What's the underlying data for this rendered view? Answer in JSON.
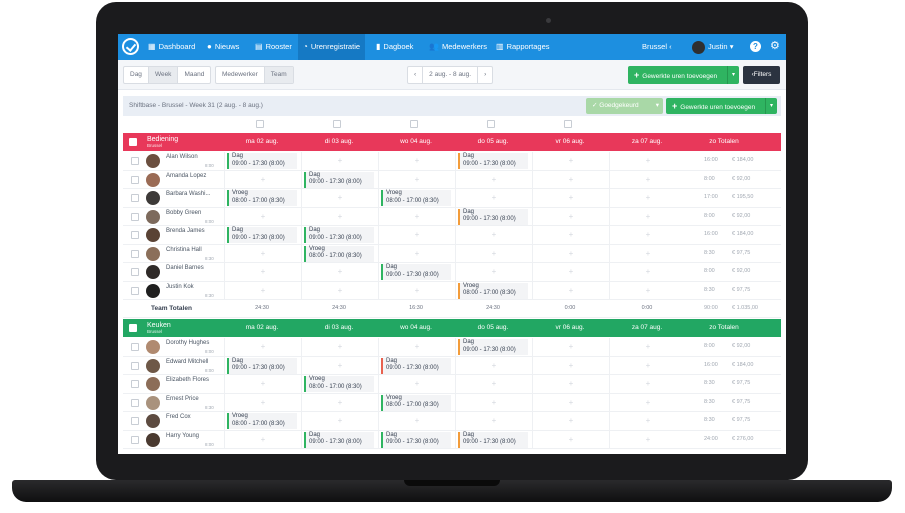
{
  "nav": {
    "items": [
      {
        "label": "Dashboard",
        "icon": "dashboard-icon"
      },
      {
        "label": "Nieuws",
        "icon": "chat-icon"
      },
      {
        "label": "Rooster",
        "icon": "calendar-icon"
      },
      {
        "label": "Urenregistratie",
        "icon": "clock-icon"
      },
      {
        "label": "Dagboek",
        "icon": "book-icon"
      },
      {
        "label": "Medewerkers",
        "icon": "people-icon"
      },
      {
        "label": "Rapportages",
        "icon": "bar-chart-icon"
      }
    ],
    "location": "Brussel",
    "user": "Justin"
  },
  "toolbar": {
    "period_buttons": [
      "Dag",
      "Week",
      "Maand"
    ],
    "view_buttons": [
      "Medewerker",
      "Team"
    ],
    "date_range": "2 aug. - 8 aug.",
    "add_hours": "Gewerkte uren toevoegen",
    "filters": "Filters"
  },
  "weekbar": {
    "title": "Shiftbase - Brussel - Week 31 (2 aug. - 8 aug.)",
    "approve": "Goedgekeurd",
    "add_hours": "Gewerkte uren toevoegen"
  },
  "colors": {
    "bediening": "#e8385a",
    "keuken": "#22a763",
    "nav": "#1d8fe0"
  },
  "days": [
    "ma 02 aug.",
    "di 03 aug.",
    "wo 04 aug.",
    "do 05 aug.",
    "vr 06 aug.",
    "za 07 aug.",
    "zo Totalen"
  ],
  "groups": [
    {
      "name": "Bediening",
      "sub": "Brussel",
      "employees": [
        {
          "name": "Alan Wilson",
          "hours": "8:00",
          "shifts": [
            {
              "d": 0,
              "n": "Dag",
              "t": "09:00 - 17:30 (8:00)",
              "c": "green"
            },
            {
              "d": 3,
              "n": "Dag",
              "t": "09:00 - 17:30 (8:00)",
              "c": "orange"
            }
          ],
          "total": "16:00",
          "amount": "€ 184,00"
        },
        {
          "name": "Amanda Lopez",
          "hours": "",
          "shifts": [
            {
              "d": 1,
              "n": "Dag",
              "t": "09:00 - 17:30 (8:00)",
              "c": "green"
            }
          ],
          "total": "8:00",
          "amount": "€ 92,00"
        },
        {
          "name": "Barbara Washi...",
          "hours": "",
          "shifts": [
            {
              "d": 0,
              "n": "Vroeg",
              "t": "08:00 - 17:00 (8:30)",
              "c": "green"
            },
            {
              "d": 2,
              "n": "Vroeg",
              "t": "08:00 - 17:00 (8:30)",
              "c": "green"
            }
          ],
          "total": "17:00",
          "amount": "€ 195,50"
        },
        {
          "name": "Bobby Green",
          "hours": "8:00",
          "shifts": [
            {
              "d": 3,
              "n": "Dag",
              "t": "09:00 - 17:30 (8:00)",
              "c": "orange"
            }
          ],
          "total": "8:00",
          "amount": "€ 92,00"
        },
        {
          "name": "Brenda James",
          "hours": "",
          "shifts": [
            {
              "d": 0,
              "n": "Dag",
              "t": "09:00 - 17:30 (8:00)",
              "c": "green"
            },
            {
              "d": 1,
              "n": "Dag",
              "t": "09:00 - 17:30 (8:00)",
              "c": "green"
            }
          ],
          "total": "16:00",
          "amount": "€ 184,00"
        },
        {
          "name": "Christina Hall",
          "hours": "8:30",
          "shifts": [
            {
              "d": 1,
              "n": "Vroeg",
              "t": "08:00 - 17:00 (8:30)",
              "c": "green"
            }
          ],
          "total": "8:30",
          "amount": "€ 97,75"
        },
        {
          "name": "Daniel Barnes",
          "hours": "",
          "shifts": [
            {
              "d": 2,
              "n": "Dag",
              "t": "09:00 - 17:30 (8:00)",
              "c": "green"
            }
          ],
          "total": "8:00",
          "amount": "€ 92,00"
        },
        {
          "name": "Justin Kok",
          "hours": "8:30",
          "shifts": [
            {
              "d": 3,
              "n": "Vroeg",
              "t": "08:00 - 17:00 (8:30)",
              "c": "orange"
            }
          ],
          "total": "8:30",
          "amount": "€ 97,75"
        }
      ],
      "team_totals": {
        "label": "Team Totalen",
        "values": [
          "24:30",
          "24:30",
          "16:30",
          "24:30",
          "0:00",
          "0:00"
        ],
        "total": "90:00",
        "amount": "€ 1.035,00"
      }
    },
    {
      "name": "Keuken",
      "sub": "Brussel",
      "employees": [
        {
          "name": "Dorothy Hughes",
          "hours": "8:00",
          "shifts": [
            {
              "d": 3,
              "n": "Dag",
              "t": "09:00 - 17:30 (8:00)",
              "c": "orange"
            }
          ],
          "total": "8:00",
          "amount": "€ 92,00"
        },
        {
          "name": "Edward Mitchell",
          "hours": "8:00",
          "shifts": [
            {
              "d": 0,
              "n": "Dag",
              "t": "09:00 - 17:30 (8:00)",
              "c": "green"
            },
            {
              "d": 2,
              "n": "Dag",
              "t": "09:00 - 17:30 (8:00)",
              "c": "red"
            }
          ],
          "total": "16:00",
          "amount": "€ 184,00"
        },
        {
          "name": "Elizabeth Flores",
          "hours": "",
          "shifts": [
            {
              "d": 1,
              "n": "Vroeg",
              "t": "08:00 - 17:00 (8:30)",
              "c": "green"
            }
          ],
          "total": "8:30",
          "amount": "€ 97,75"
        },
        {
          "name": "Ernest Price",
          "hours": "8:30",
          "shifts": [
            {
              "d": 2,
              "n": "Vroeg",
              "t": "08:00 - 17:00 (8:30)",
              "c": "green"
            }
          ],
          "total": "8:30",
          "amount": "€ 97,75"
        },
        {
          "name": "Fred Cox",
          "hours": "",
          "shifts": [
            {
              "d": 0,
              "n": "Vroeg",
              "t": "08:00 - 17:00 (8:30)",
              "c": "green"
            }
          ],
          "total": "8:30",
          "amount": "€ 97,75"
        },
        {
          "name": "Harry Young",
          "hours": "8:00",
          "shifts": [
            {
              "d": 1,
              "n": "Dag",
              "t": "09:00 - 17:30 (8:00)",
              "c": "green"
            },
            {
              "d": 2,
              "n": "Dag",
              "t": "09:00 - 17:30 (8:00)",
              "c": "green"
            },
            {
              "d": 3,
              "n": "Dag",
              "t": "09:00 - 17:30 (8:00)",
              "c": "orange"
            }
          ],
          "total": "24:00",
          "amount": "€ 276,00"
        }
      ]
    }
  ]
}
